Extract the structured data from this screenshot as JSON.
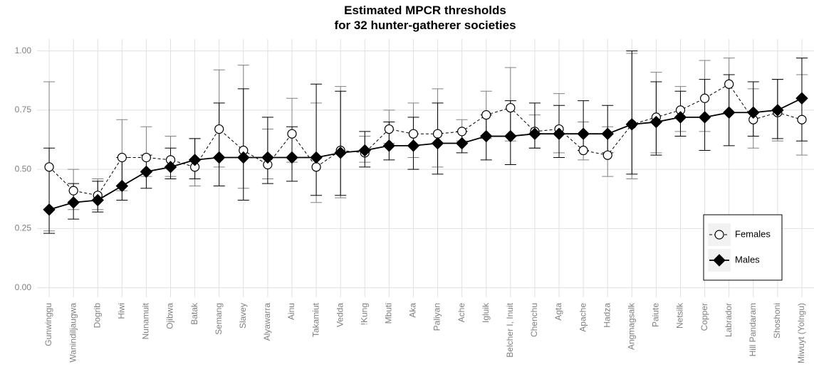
{
  "chart_data": {
    "type": "errorbar-line",
    "title": [
      "Estimated MPCR thresholds",
      "for 32 hunter-gatherer societies"
    ],
    "categories": [
      "Gunwinggu",
      "Wanindiljaugwa",
      "Dogrib",
      "Hiwi",
      "Nunamuit",
      "Ojibwa",
      "Batak",
      "Semang",
      "Slavey",
      "Alyawarra",
      "Ainu",
      "Takamiut",
      "Vedda",
      "!Kung",
      "Mbuti",
      "Aka",
      "Paliyan",
      "Ache",
      "Igluik",
      "Belcher I, Inuit",
      "Chenchu",
      "Agta",
      "Apache",
      "Hadza",
      "Angmagsalk",
      "Paiute",
      "Netsilk",
      "Copper",
      "Labrador",
      "Hill Pandaram",
      "Shoshoni",
      "Miwuyt (Yolngu)"
    ],
    "series": [
      {
        "name": "Females",
        "color": "#000000",
        "fill": "#ffffff",
        "marker": "circle",
        "dash": true,
        "error_color": "#808080",
        "values": [
          0.51,
          0.41,
          0.39,
          0.55,
          0.55,
          0.54,
          0.51,
          0.67,
          0.58,
          0.52,
          0.65,
          0.51,
          0.58,
          0.57,
          0.67,
          0.65,
          0.65,
          0.66,
          0.73,
          0.76,
          0.66,
          0.67,
          0.58,
          0.56,
          0.69,
          0.72,
          0.75,
          0.8,
          0.86,
          0.71,
          0.74,
          0.71
        ],
        "lower": [
          0.24,
          0.33,
          0.33,
          0.41,
          0.47,
          0.47,
          0.43,
          0.51,
          0.42,
          0.46,
          0.53,
          0.36,
          0.38,
          0.53,
          0.61,
          0.55,
          0.51,
          0.62,
          0.63,
          0.62,
          0.59,
          0.57,
          0.54,
          0.47,
          0.46,
          0.57,
          0.66,
          0.66,
          0.74,
          0.59,
          0.62,
          0.56
        ],
        "upper": [
          0.87,
          0.5,
          0.46,
          0.71,
          0.68,
          0.64,
          0.63,
          0.92,
          0.94,
          0.67,
          0.8,
          0.78,
          0.85,
          0.64,
          0.75,
          0.78,
          0.84,
          0.71,
          0.83,
          0.93,
          0.73,
          0.82,
          0.7,
          0.68,
          0.99,
          0.91,
          0.85,
          0.96,
          0.97,
          0.84,
          0.88,
          0.9
        ]
      },
      {
        "name": "Males",
        "color": "#000000",
        "fill": "#000000",
        "marker": "diamond",
        "dash": false,
        "error_color": "#000000",
        "values": [
          0.33,
          0.36,
          0.37,
          0.43,
          0.49,
          0.51,
          0.54,
          0.55,
          0.55,
          0.55,
          0.55,
          0.55,
          0.57,
          0.58,
          0.6,
          0.6,
          0.61,
          0.61,
          0.64,
          0.64,
          0.65,
          0.65,
          0.65,
          0.65,
          0.69,
          0.7,
          0.72,
          0.72,
          0.74,
          0.74,
          0.75,
          0.8
        ],
        "lower": [
          0.23,
          0.29,
          0.32,
          0.37,
          0.42,
          0.46,
          0.46,
          0.43,
          0.37,
          0.44,
          0.45,
          0.39,
          0.39,
          0.51,
          0.54,
          0.5,
          0.48,
          0.57,
          0.54,
          0.52,
          0.59,
          0.55,
          0.58,
          0.57,
          0.48,
          0.56,
          0.64,
          0.58,
          0.6,
          0.64,
          0.63,
          0.62
        ],
        "upper": [
          0.59,
          0.44,
          0.45,
          0.55,
          0.56,
          0.59,
          0.63,
          0.78,
          0.84,
          0.72,
          0.68,
          0.86,
          0.83,
          0.66,
          0.7,
          0.72,
          0.78,
          0.66,
          0.73,
          0.79,
          0.78,
          0.77,
          0.79,
          0.77,
          1.0,
          0.87,
          0.83,
          0.88,
          0.9,
          0.87,
          0.88,
          0.97
        ]
      }
    ],
    "ylim": [
      -0.04,
      1.05
    ],
    "yticks": [
      {
        "value": 0,
        "label": "0.00"
      },
      0.25,
      {
        "value": 0.5,
        "label": "0.50"
      },
      0.75,
      {
        "value": 1,
        "label": "1.00"
      }
    ],
    "grid": true,
    "legend_position": "right"
  }
}
